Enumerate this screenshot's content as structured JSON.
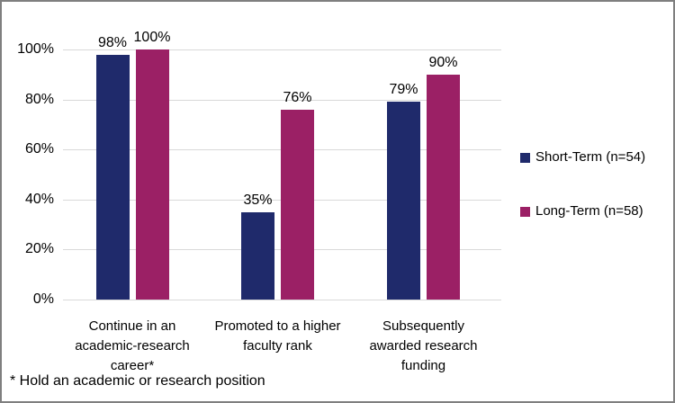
{
  "chart_data": {
    "type": "bar",
    "title": "",
    "xlabel": "",
    "ylabel": "",
    "ylim": [
      0,
      100
    ],
    "grid": true,
    "legend_position": "right",
    "value_suffix": "%",
    "yticks": [
      0,
      20,
      40,
      60,
      80,
      100
    ],
    "ytick_labels": [
      "0%",
      "20%",
      "40%",
      "60%",
      "80%",
      "100%"
    ],
    "categories": [
      {
        "label": "Continue in an academic-research career*",
        "lines": [
          "Continue in an",
          "academic-research",
          "career*"
        ]
      },
      {
        "label": "Promoted to a higher faculty rank",
        "lines": [
          "Promoted to a higher",
          "faculty rank"
        ]
      },
      {
        "label": "Subsequently awarded research funding",
        "lines": [
          "Subsequently",
          "awarded research",
          "funding"
        ]
      }
    ],
    "series": [
      {
        "name": "Short-Term (n=54)",
        "color": "#1F2A6B",
        "values": [
          98,
          35,
          79
        ]
      },
      {
        "name": "Long-Term (n=58)",
        "color": "#9B2065",
        "values": [
          100,
          76,
          90
        ]
      }
    ]
  },
  "footnote": "* Hold an academic or research position",
  "colors": {
    "gridline": "#D9D9D9",
    "frame_border": "#7F7F7F",
    "text": "#000000"
  }
}
